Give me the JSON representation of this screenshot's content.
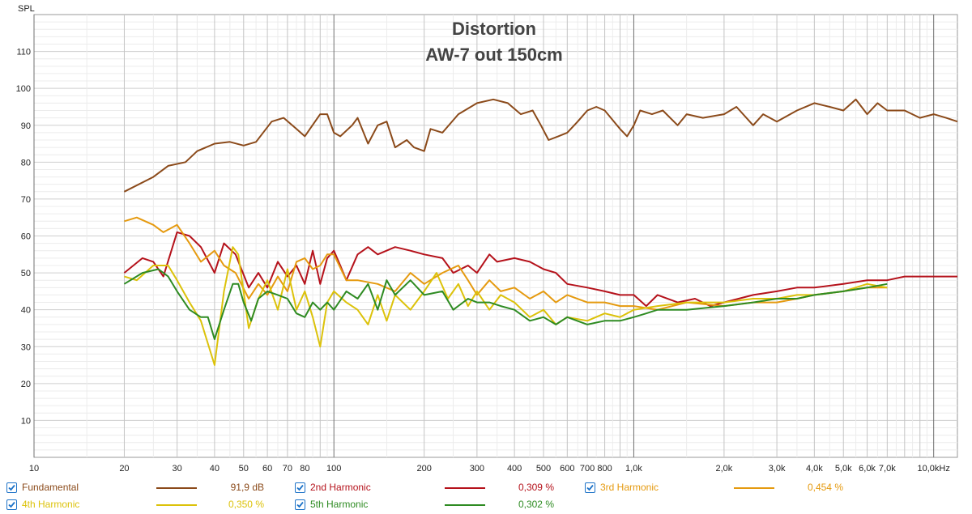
{
  "chart_data": {
    "type": "line",
    "title": "Distortion",
    "subtitle": "AW-7 out 150cm",
    "ylabel": "SPL",
    "xlabel": "",
    "x_scale": "log",
    "xlim": [
      10,
      12000
    ],
    "ylim": [
      0,
      120
    ],
    "grid": true,
    "y_ticks": [
      10,
      20,
      30,
      40,
      50,
      60,
      70,
      80,
      90,
      100,
      110
    ],
    "x_ticks": [
      {
        "v": 10,
        "label": "10"
      },
      {
        "v": 20,
        "label": "20"
      },
      {
        "v": 30,
        "label": "30"
      },
      {
        "v": 40,
        "label": "40"
      },
      {
        "v": 50,
        "label": "50"
      },
      {
        "v": 60,
        "label": "60"
      },
      {
        "v": 70,
        "label": "70"
      },
      {
        "v": 80,
        "label": "80"
      },
      {
        "v": 100,
        "label": "100"
      },
      {
        "v": 200,
        "label": "200"
      },
      {
        "v": 300,
        "label": "300"
      },
      {
        "v": 400,
        "label": "400"
      },
      {
        "v": 500,
        "label": "500"
      },
      {
        "v": 600,
        "label": "600"
      },
      {
        "v": 700,
        "label": "700"
      },
      {
        "v": 800,
        "label": "800"
      },
      {
        "v": 1000,
        "label": "1,0k"
      },
      {
        "v": 2000,
        "label": "2,0k"
      },
      {
        "v": 3000,
        "label": "3,0k"
      },
      {
        "v": 4000,
        "label": "4,0k"
      },
      {
        "v": 5000,
        "label": "5,0k"
      },
      {
        "v": 6000,
        "label": "6,0k"
      },
      {
        "v": 7000,
        "label": "7,0k"
      },
      {
        "v": 10000,
        "label": "10,0kHz"
      }
    ],
    "series": [
      {
        "name": "Fundamental",
        "color": "#8b4a1a",
        "legend_value": "91,9 dB",
        "points": [
          [
            20,
            72
          ],
          [
            25,
            76
          ],
          [
            28,
            79
          ],
          [
            32,
            80
          ],
          [
            35,
            83
          ],
          [
            40,
            85
          ],
          [
            45,
            85.5
          ],
          [
            50,
            84.5
          ],
          [
            55,
            85.5
          ],
          [
            62,
            91
          ],
          [
            68,
            92
          ],
          [
            75,
            89
          ],
          [
            80,
            87
          ],
          [
            90,
            93
          ],
          [
            95,
            93
          ],
          [
            100,
            88
          ],
          [
            105,
            87
          ],
          [
            115,
            90
          ],
          [
            120,
            92
          ],
          [
            130,
            85
          ],
          [
            140,
            90
          ],
          [
            150,
            91
          ],
          [
            160,
            84
          ],
          [
            175,
            86
          ],
          [
            185,
            84
          ],
          [
            200,
            83
          ],
          [
            210,
            89
          ],
          [
            230,
            88
          ],
          [
            260,
            93
          ],
          [
            300,
            96
          ],
          [
            340,
            97
          ],
          [
            380,
            96
          ],
          [
            420,
            93
          ],
          [
            460,
            94
          ],
          [
            490,
            90
          ],
          [
            520,
            86
          ],
          [
            560,
            87
          ],
          [
            600,
            88
          ],
          [
            650,
            91
          ],
          [
            700,
            94
          ],
          [
            750,
            95
          ],
          [
            800,
            94
          ],
          [
            900,
            89
          ],
          [
            950,
            87
          ],
          [
            1000,
            90
          ],
          [
            1050,
            94
          ],
          [
            1150,
            93
          ],
          [
            1250,
            94
          ],
          [
            1400,
            90
          ],
          [
            1500,
            93
          ],
          [
            1700,
            92
          ],
          [
            2000,
            93
          ],
          [
            2200,
            95
          ],
          [
            2500,
            90
          ],
          [
            2700,
            93
          ],
          [
            3000,
            91
          ],
          [
            3500,
            94
          ],
          [
            4000,
            96
          ],
          [
            4500,
            95
          ],
          [
            5000,
            94
          ],
          [
            5500,
            97
          ],
          [
            6000,
            93
          ],
          [
            6500,
            96
          ],
          [
            7000,
            94
          ],
          [
            8000,
            94
          ],
          [
            9000,
            92
          ],
          [
            10000,
            93
          ],
          [
            11000,
            92
          ],
          [
            12000,
            91
          ]
        ]
      },
      {
        "name": "2nd Harmonic",
        "color": "#b5121b",
        "legend_value": "0,309 %",
        "points": [
          [
            20,
            50
          ],
          [
            23,
            54
          ],
          [
            25,
            53
          ],
          [
            27,
            49
          ],
          [
            30,
            61
          ],
          [
            33,
            60
          ],
          [
            36,
            57
          ],
          [
            40,
            50
          ],
          [
            43,
            58
          ],
          [
            47,
            55
          ],
          [
            52,
            46
          ],
          [
            56,
            50
          ],
          [
            60,
            46
          ],
          [
            65,
            53
          ],
          [
            70,
            49
          ],
          [
            75,
            52
          ],
          [
            80,
            47
          ],
          [
            85,
            56
          ],
          [
            90,
            47
          ],
          [
            95,
            54
          ],
          [
            100,
            56
          ],
          [
            105,
            52
          ],
          [
            110,
            48
          ],
          [
            120,
            55
          ],
          [
            130,
            57
          ],
          [
            140,
            55
          ],
          [
            160,
            57
          ],
          [
            180,
            56
          ],
          [
            200,
            55
          ],
          [
            230,
            54
          ],
          [
            250,
            50
          ],
          [
            280,
            52
          ],
          [
            300,
            50
          ],
          [
            330,
            55
          ],
          [
            350,
            53
          ],
          [
            400,
            54
          ],
          [
            450,
            53
          ],
          [
            500,
            51
          ],
          [
            550,
            50
          ],
          [
            600,
            47
          ],
          [
            700,
            46
          ],
          [
            800,
            45
          ],
          [
            900,
            44
          ],
          [
            1000,
            44
          ],
          [
            1100,
            41
          ],
          [
            1200,
            44
          ],
          [
            1400,
            42
          ],
          [
            1600,
            43
          ],
          [
            1800,
            41
          ],
          [
            2000,
            42
          ],
          [
            2500,
            44
          ],
          [
            3000,
            45
          ],
          [
            3500,
            46
          ],
          [
            4000,
            46
          ],
          [
            5000,
            47
          ],
          [
            6000,
            48
          ],
          [
            7000,
            48
          ],
          [
            8000,
            49
          ],
          [
            10000,
            49
          ],
          [
            12000,
            49
          ]
        ]
      },
      {
        "name": "3rd Harmonic",
        "color": "#e59a0f",
        "legend_value": "0,454 %",
        "points": [
          [
            20,
            64
          ],
          [
            22,
            65
          ],
          [
            25,
            63
          ],
          [
            27,
            61
          ],
          [
            30,
            63
          ],
          [
            33,
            58
          ],
          [
            36,
            53
          ],
          [
            40,
            56
          ],
          [
            43,
            52
          ],
          [
            47,
            50
          ],
          [
            52,
            43
          ],
          [
            56,
            47
          ],
          [
            60,
            44
          ],
          [
            65,
            49
          ],
          [
            70,
            45
          ],
          [
            75,
            53
          ],
          [
            80,
            54
          ],
          [
            85,
            51
          ],
          [
            90,
            52
          ],
          [
            95,
            55
          ],
          [
            100,
            55
          ],
          [
            110,
            48
          ],
          [
            120,
            48
          ],
          [
            140,
            47
          ],
          [
            160,
            45
          ],
          [
            180,
            50
          ],
          [
            200,
            47
          ],
          [
            230,
            50
          ],
          [
            260,
            52
          ],
          [
            280,
            48
          ],
          [
            300,
            44
          ],
          [
            330,
            48
          ],
          [
            360,
            45
          ],
          [
            400,
            46
          ],
          [
            450,
            43
          ],
          [
            500,
            45
          ],
          [
            550,
            42
          ],
          [
            600,
            44
          ],
          [
            700,
            42
          ],
          [
            800,
            42
          ],
          [
            900,
            41
          ],
          [
            1000,
            41
          ],
          [
            1200,
            40
          ],
          [
            1500,
            42
          ],
          [
            2000,
            41
          ],
          [
            2500,
            42
          ],
          [
            3000,
            42
          ],
          [
            3500,
            43
          ],
          [
            4000,
            44
          ],
          [
            5000,
            45
          ],
          [
            6000,
            46
          ],
          [
            7000,
            46
          ]
        ]
      },
      {
        "name": "4th Harmonic",
        "color": "#dcc20a",
        "legend_value": "0,350 %",
        "points": [
          [
            20,
            49
          ],
          [
            22,
            48
          ],
          [
            25,
            52
          ],
          [
            28,
            52
          ],
          [
            30,
            48
          ],
          [
            33,
            42
          ],
          [
            36,
            37
          ],
          [
            40,
            25
          ],
          [
            43,
            45
          ],
          [
            46,
            57
          ],
          [
            48,
            55
          ],
          [
            52,
            35
          ],
          [
            56,
            43
          ],
          [
            60,
            48
          ],
          [
            65,
            40
          ],
          [
            70,
            51
          ],
          [
            75,
            40
          ],
          [
            80,
            45
          ],
          [
            85,
            38
          ],
          [
            90,
            30
          ],
          [
            95,
            42
          ],
          [
            100,
            45
          ],
          [
            110,
            42
          ],
          [
            120,
            40
          ],
          [
            130,
            36
          ],
          [
            140,
            44
          ],
          [
            150,
            37
          ],
          [
            160,
            44
          ],
          [
            180,
            40
          ],
          [
            200,
            45
          ],
          [
            220,
            50
          ],
          [
            240,
            43
          ],
          [
            260,
            47
          ],
          [
            280,
            41
          ],
          [
            300,
            45
          ],
          [
            330,
            40
          ],
          [
            360,
            44
          ],
          [
            400,
            42
          ],
          [
            450,
            38
          ],
          [
            500,
            40
          ],
          [
            550,
            36
          ],
          [
            600,
            38
          ],
          [
            700,
            37
          ],
          [
            800,
            39
          ],
          [
            900,
            38
          ],
          [
            1000,
            40
          ],
          [
            1200,
            41
          ],
          [
            1500,
            42
          ],
          [
            2000,
            42
          ],
          [
            2500,
            43
          ],
          [
            3000,
            43
          ],
          [
            3500,
            44
          ],
          [
            4000,
            44
          ],
          [
            5000,
            45
          ],
          [
            6000,
            47
          ],
          [
            7000,
            46
          ]
        ]
      },
      {
        "name": "5th Harmonic",
        "color": "#2e8b22",
        "legend_value": "0,302 %",
        "points": [
          [
            20,
            47
          ],
          [
            23,
            50
          ],
          [
            26,
            51
          ],
          [
            28,
            49
          ],
          [
            30,
            45
          ],
          [
            33,
            40
          ],
          [
            36,
            38
          ],
          [
            38,
            38
          ],
          [
            40,
            32
          ],
          [
            43,
            40
          ],
          [
            46,
            47
          ],
          [
            48,
            47
          ],
          [
            50,
            42
          ],
          [
            53,
            37
          ],
          [
            56,
            43
          ],
          [
            60,
            45
          ],
          [
            65,
            44
          ],
          [
            70,
            43
          ],
          [
            75,
            39
          ],
          [
            80,
            38
          ],
          [
            85,
            42
          ],
          [
            90,
            40
          ],
          [
            95,
            42
          ],
          [
            100,
            40
          ],
          [
            110,
            45
          ],
          [
            120,
            43
          ],
          [
            130,
            47
          ],
          [
            140,
            40
          ],
          [
            150,
            48
          ],
          [
            160,
            44
          ],
          [
            180,
            48
          ],
          [
            200,
            44
          ],
          [
            230,
            45
          ],
          [
            250,
            40
          ],
          [
            280,
            43
          ],
          [
            300,
            42
          ],
          [
            330,
            42
          ],
          [
            360,
            41
          ],
          [
            400,
            40
          ],
          [
            450,
            37
          ],
          [
            500,
            38
          ],
          [
            550,
            36
          ],
          [
            600,
            38
          ],
          [
            700,
            36
          ],
          [
            800,
            37
          ],
          [
            900,
            37
          ],
          [
            1000,
            38
          ],
          [
            1100,
            39
          ],
          [
            1200,
            40
          ],
          [
            1500,
            40
          ],
          [
            2000,
            41
          ],
          [
            2500,
            42
          ],
          [
            3000,
            43
          ],
          [
            3500,
            43
          ],
          [
            4000,
            44
          ],
          [
            5000,
            45
          ],
          [
            6000,
            46
          ],
          [
            7000,
            47
          ]
        ]
      }
    ]
  },
  "legend": {
    "items": [
      {
        "label": "Fundamental",
        "value": "91,9 dB",
        "color": "#8b4a1a"
      },
      {
        "label": "2nd Harmonic",
        "value": "0,309 %",
        "color": "#b5121b"
      },
      {
        "label": "3rd Harmonic",
        "value": "0,454 %",
        "color": "#e59a0f"
      },
      {
        "label": "4th Harmonic",
        "value": "0,350 %",
        "color": "#dcc20a"
      },
      {
        "label": "5th Harmonic",
        "value": "0,302 %",
        "color": "#2e8b22"
      }
    ]
  }
}
